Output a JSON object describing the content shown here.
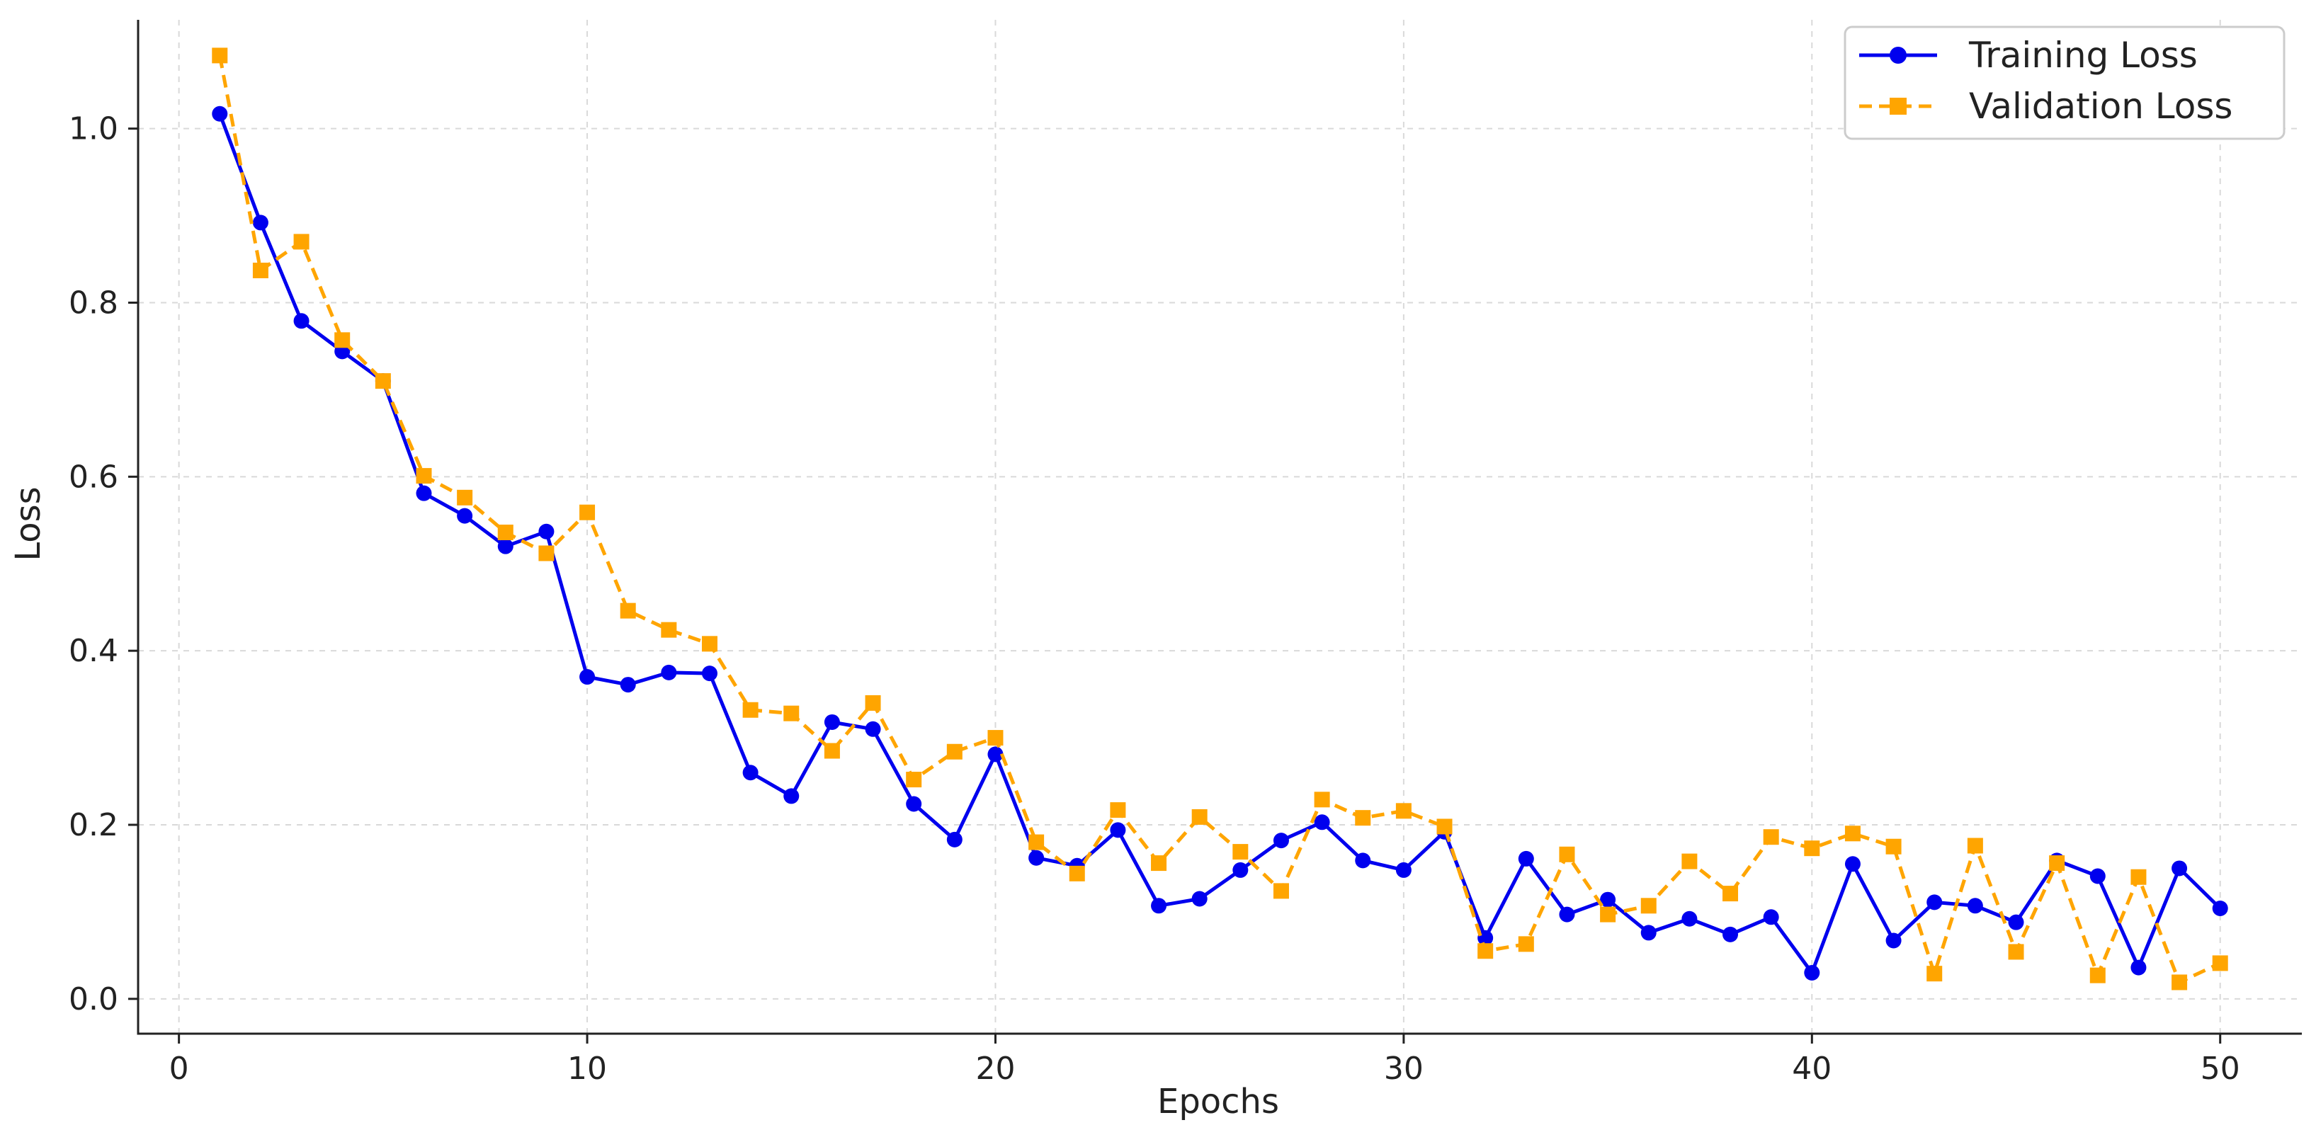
{
  "chart_data": {
    "type": "line",
    "title": "",
    "xlabel": "Epochs",
    "ylabel": "Loss",
    "xlim": [
      -1,
      52
    ],
    "ylim": [
      -0.04,
      1.125
    ],
    "xticks": [
      0,
      10,
      20,
      30,
      40,
      50
    ],
    "yticks": [
      0.0,
      0.2,
      0.4,
      0.6,
      0.8,
      1.0
    ],
    "xtick_labels": [
      "0",
      "10",
      "20",
      "30",
      "40",
      "50"
    ],
    "ytick_labels": [
      "0.0",
      "0.2",
      "0.4",
      "0.6",
      "0.8",
      "1.0"
    ],
    "grid": true,
    "legend_position": "top-right",
    "x": [
      1,
      2,
      3,
      4,
      5,
      6,
      7,
      8,
      9,
      10,
      11,
      12,
      13,
      14,
      15,
      16,
      17,
      18,
      19,
      20,
      21,
      22,
      23,
      24,
      25,
      26,
      27,
      28,
      29,
      30,
      31,
      32,
      33,
      34,
      35,
      36,
      37,
      38,
      39,
      40,
      41,
      42,
      43,
      44,
      45,
      46,
      47,
      48,
      49,
      50
    ],
    "series": [
      {
        "name": "Training Loss",
        "color": "#0000ee",
        "line_style": "solid",
        "marker": "circle",
        "values": [
          1.017,
          0.892,
          0.779,
          0.744,
          0.71,
          0.581,
          0.555,
          0.52,
          0.537,
          0.37,
          0.361,
          0.375,
          0.374,
          0.26,
          0.233,
          0.318,
          0.31,
          0.224,
          0.183,
          0.281,
          0.162,
          0.153,
          0.194,
          0.107,
          0.115,
          0.148,
          0.182,
          0.203,
          0.159,
          0.148,
          0.192,
          0.07,
          0.161,
          0.097,
          0.114,
          0.076,
          0.092,
          0.074,
          0.094,
          0.03,
          0.155,
          0.067,
          0.111,
          0.107,
          0.088,
          0.159,
          0.141,
          0.036,
          0.15,
          0.104
        ]
      },
      {
        "name": "Validation Loss",
        "color": "#ffa500",
        "line_style": "dashed",
        "marker": "square",
        "values": [
          1.084,
          0.837,
          0.87,
          0.757,
          0.71,
          0.601,
          0.576,
          0.536,
          0.512,
          0.559,
          0.446,
          0.424,
          0.408,
          0.332,
          0.328,
          0.285,
          0.34,
          0.252,
          0.284,
          0.3,
          0.18,
          0.144,
          0.217,
          0.156,
          0.209,
          0.169,
          0.124,
          0.229,
          0.208,
          0.216,
          0.198,
          0.055,
          0.063,
          0.166,
          0.097,
          0.107,
          0.158,
          0.121,
          0.186,
          0.173,
          0.19,
          0.175,
          0.029,
          0.176,
          0.054,
          0.156,
          0.027,
          0.14,
          0.019,
          0.041
        ]
      }
    ]
  }
}
